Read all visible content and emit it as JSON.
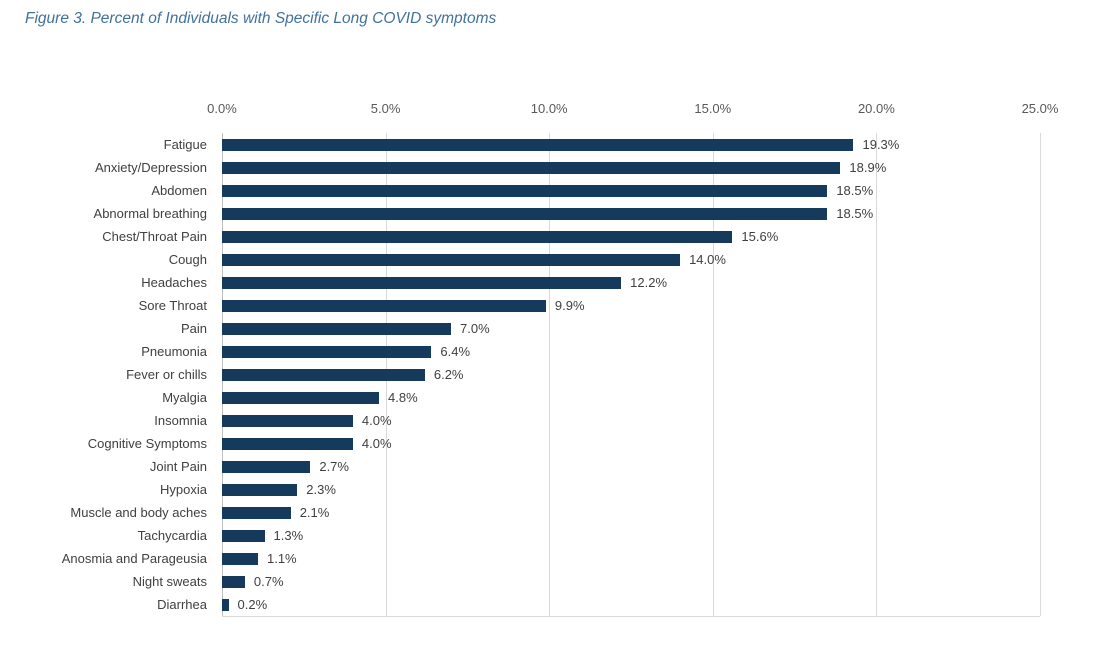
{
  "title": "Figure 3. Percent of Individuals with Specific Long COVID symptoms",
  "colors": {
    "bar": "#163A5C",
    "title": "#41719C",
    "label": "#404040",
    "tick": "#595959",
    "gridline": "#D9D9D9",
    "axis_line": "#BFBFBF",
    "background": "#FFFFFF"
  },
  "chart_data": {
    "type": "bar",
    "orientation": "horizontal",
    "title": "Figure 3. Percent of Individuals with Specific Long COVID symptoms",
    "categories": [
      "Fatigue",
      "Anxiety/Depression",
      "Abdomen",
      "Abnormal breathing",
      "Chest/Throat Pain",
      "Cough",
      "Headaches",
      "Sore Throat",
      "Pain",
      "Pneumonia",
      "Fever or chills",
      "Myalgia",
      "Insomnia",
      "Cognitive Symptoms",
      "Joint Pain",
      "Hypoxia",
      "Muscle and body aches",
      "Tachycardia",
      "Anosmia and Parageusia",
      "Night sweats",
      "Diarrhea"
    ],
    "values": [
      19.3,
      18.9,
      18.5,
      18.5,
      15.6,
      14.0,
      12.2,
      9.9,
      7.0,
      6.4,
      6.2,
      4.8,
      4.0,
      4.0,
      2.7,
      2.3,
      2.1,
      1.3,
      1.1,
      0.7,
      0.2
    ],
    "value_labels": [
      "19.3%",
      "18.9%",
      "18.5%",
      "18.5%",
      "15.6%",
      "14.0%",
      "12.2%",
      "9.9%",
      "7.0%",
      "6.4%",
      "6.2%",
      "4.8%",
      "4.0%",
      "4.0%",
      "2.7%",
      "2.3%",
      "2.1%",
      "1.3%",
      "1.1%",
      "0.7%",
      "0.2%"
    ],
    "xlabel": "",
    "ylabel": "",
    "x_ticks": [
      "0.0%",
      "5.0%",
      "10.0%",
      "15.0%",
      "20.0%",
      "25.0%"
    ],
    "x_tick_values": [
      0,
      5,
      10,
      15,
      20,
      25
    ],
    "xlim": [
      0,
      25
    ],
    "grid": "vertical",
    "legend": "none",
    "data_labels": "outside-end"
  }
}
